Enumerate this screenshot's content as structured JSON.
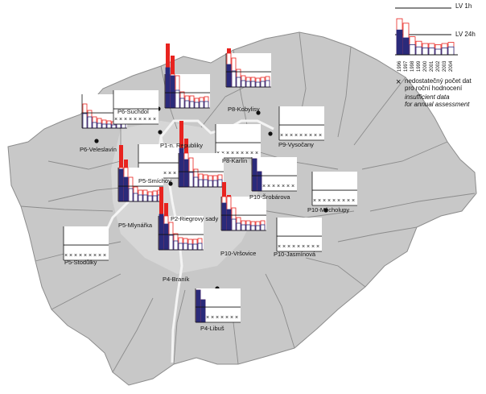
{
  "legend": {
    "lv_1h": "LV 1h",
    "lv_24h": "LV 24h",
    "years": [
      "1996",
      "1997",
      "1998",
      "1999",
      "2000",
      "2001",
      "2002",
      "2003",
      "2004"
    ],
    "insufficient_symbol": "×",
    "insufficient_cz_1": "nedostatečný počet dat",
    "insufficient_cz_2": "pro roční hodnocení",
    "insufficient_en_1": "insufficient data",
    "insufficient_en_2": "for annual assessment",
    "colors": {
      "lv_1h_exceed": "#e8231f",
      "lv_24h_exceed": "#2a2a7a",
      "bar_outline": "#2a2a7a",
      "red_outline": "#e8231f"
    }
  },
  "stations": [
    {
      "id": "P6-Suchdol",
      "label": "P6-Suchdol"
    },
    {
      "id": "P6-Veleslavin",
      "label": "P6-Veleslavín"
    },
    {
      "id": "P1-nRepubliky",
      "label": "P1-n. Republiky"
    },
    {
      "id": "P8-Kobylisy",
      "label": "P8-Kobylisy"
    },
    {
      "id": "P9-Vysocany",
      "label": "P9-Vysočany"
    },
    {
      "id": "P8-Karlin",
      "label": "P8-Karlín"
    },
    {
      "id": "P5-Smichov",
      "label": "P5-Smíchov"
    },
    {
      "id": "P5-Mlynarka",
      "label": "P5-Mlynářka"
    },
    {
      "id": "P2-RiegrovySady",
      "label": "P2-Riegrovy sady"
    },
    {
      "id": "P10-Srobarova",
      "label": "P10-Šrobárova"
    },
    {
      "id": "P10-Mecholupy",
      "label": "P10-Měcholupy"
    },
    {
      "id": "P5-Stodulky",
      "label": "P5-Stodůlky"
    },
    {
      "id": "P10-Vrsovice",
      "label": "P10-Vršovice"
    },
    {
      "id": "P10-Jasminova",
      "label": "P10-Jasmínová"
    },
    {
      "id": "P4-Branik",
      "label": "P4-Braník"
    },
    {
      "id": "P4-Libus",
      "label": "P4-Libuš"
    }
  ]
}
